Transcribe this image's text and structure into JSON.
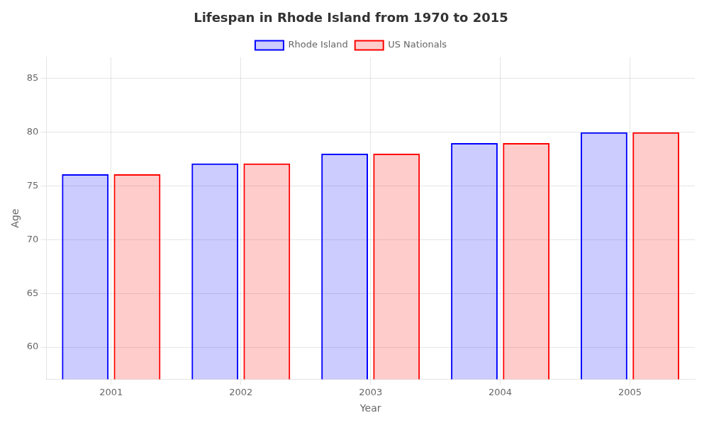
{
  "chart_data": {
    "type": "bar",
    "title": "Lifespan in Rhode Island from 1970 to 2015",
    "xlabel": "Year",
    "ylabel": "Age",
    "categories": [
      "2001",
      "2002",
      "2003",
      "2004",
      "2005"
    ],
    "series": [
      {
        "name": "Rhode Island",
        "color": "#0000ff",
        "values": [
          76.1,
          77.1,
          78.0,
          79.0,
          80.0
        ]
      },
      {
        "name": "US Nationals",
        "color": "#ff0000",
        "values": [
          76.1,
          77.1,
          78.0,
          79.0,
          80.0
        ]
      }
    ],
    "ylim": [
      57,
      87
    ],
    "yticks": [
      60,
      65,
      70,
      75,
      80,
      85
    ],
    "grid": true,
    "legend": "top"
  }
}
